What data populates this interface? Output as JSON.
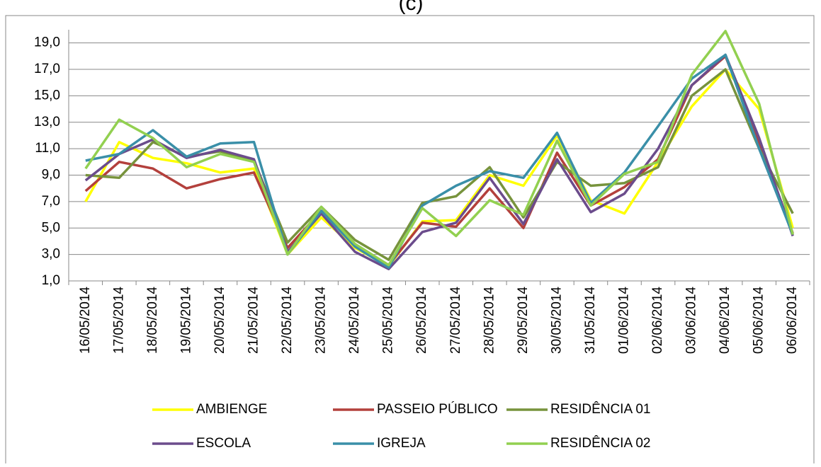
{
  "chart_data": {
    "type": "line",
    "title": "(c)",
    "categories": [
      "16/05/2014",
      "17/05/2014",
      "18/05/2014",
      "19/05/2014",
      "20/05/2014",
      "21/05/2014",
      "22/05/2014",
      "23/05/2014",
      "24/05/2014",
      "25/05/2014",
      "26/05/2014",
      "27/05/2014",
      "28/05/2014",
      "29/05/2014",
      "30/05/2014",
      "31/05/2014",
      "01/06/2014",
      "02/06/2014",
      "03/06/2014",
      "04/06/2014",
      "05/06/2014",
      "06/06/2014"
    ],
    "series": [
      {
        "name": "AMBIENGE",
        "color": "#ffff00",
        "values": [
          7.0,
          11.5,
          10.3,
          9.9,
          9.2,
          9.5,
          3.0,
          5.8,
          3.5,
          2.1,
          5.5,
          5.6,
          9.0,
          8.2,
          12.0,
          7.1,
          6.1,
          10.0,
          14.2,
          17.0,
          14.0,
          5.0
        ]
      },
      {
        "name": "PASSEIO PÚBLICO",
        "color": "#b3403c",
        "values": [
          7.8,
          10.0,
          9.5,
          8.0,
          8.7,
          9.2,
          3.5,
          6.3,
          3.7,
          2.2,
          5.4,
          5.1,
          8.0,
          5.0,
          10.7,
          6.7,
          8.1,
          10.2,
          15.8,
          18.0,
          11.5,
          4.6
        ]
      },
      {
        "name": "RESIDÊNCIA 01",
        "color": "#77933c",
        "values": [
          9.0,
          8.8,
          11.5,
          10.4,
          10.8,
          10.1,
          3.9,
          6.6,
          4.1,
          2.6,
          6.9,
          7.4,
          9.6,
          5.8,
          10.0,
          8.2,
          8.4,
          9.6,
          15.0,
          17.0,
          11.0,
          6.1
        ]
      },
      {
        "name": "ESCOLA",
        "color": "#6b4c8c",
        "values": [
          8.6,
          10.6,
          11.7,
          10.3,
          10.9,
          10.2,
          3.2,
          6.1,
          3.2,
          1.9,
          4.7,
          5.4,
          8.8,
          5.3,
          10.2,
          6.2,
          7.6,
          11.0,
          15.8,
          18.1,
          11.8,
          4.4
        ]
      },
      {
        "name": "IGREJA",
        "color": "#3a8fa8",
        "values": [
          10.1,
          10.6,
          12.4,
          10.4,
          11.4,
          11.5,
          3.0,
          6.3,
          3.6,
          2.0,
          6.7,
          8.2,
          9.3,
          8.8,
          12.2,
          6.9,
          9.2,
          12.7,
          16.3,
          18.1,
          11.0,
          4.5
        ]
      },
      {
        "name": "RESIDÊNCIA 02",
        "color": "#92d050",
        "values": [
          9.5,
          13.2,
          11.8,
          9.6,
          10.6,
          10.0,
          3.0,
          6.6,
          3.8,
          2.2,
          6.5,
          4.4,
          7.1,
          6.0,
          11.6,
          6.7,
          9.1,
          10.0,
          16.6,
          19.9,
          14.4,
          4.5
        ]
      }
    ],
    "ylim": [
      1,
      20
    ],
    "yticks": [
      {
        "value": 1,
        "label": "1,0"
      },
      {
        "value": 3,
        "label": "3,0"
      },
      {
        "value": 5,
        "label": "5,0"
      },
      {
        "value": 7,
        "label": "7,0"
      },
      {
        "value": 9,
        "label": "9,0"
      },
      {
        "value": 11,
        "label": "11,0"
      },
      {
        "value": 13,
        "label": "13,0"
      },
      {
        "value": 15,
        "label": "15,0"
      },
      {
        "value": 17,
        "label": "17,0"
      },
      {
        "value": 19,
        "label": "19,0"
      }
    ],
    "grid": true,
    "legend": "bottom"
  }
}
